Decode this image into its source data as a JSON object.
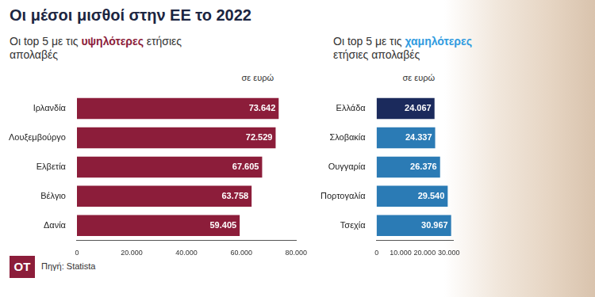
{
  "title": "Οι μέσοι μισθοί στην ΕΕ το 2022",
  "source": "Πηγή: Statista",
  "logo": "OT",
  "chart_data": [
    {
      "type": "bar",
      "orientation": "horizontal",
      "title": "Οι top 5 με τις υψηλότερες ετήσιες απολαβές",
      "title_emphasis": "υψηλότερες",
      "xlabel": "σε ευρώ",
      "categories": [
        "Ιρλανδία",
        "Λουξεμβούργο",
        "Ελβετία",
        "Βέλγιο",
        "Δανία"
      ],
      "values": [
        73642,
        72529,
        67605,
        63758,
        59405
      ],
      "value_labels": [
        "73.642",
        "72.529",
        "67.605",
        "63.758",
        "59.405"
      ],
      "color": "#8c1d3a",
      "xlim": [
        0,
        80000
      ],
      "xticks": [
        0,
        {
          "value": 20000,
          "label": "20.000"
        },
        {
          "value": 40000,
          "label": "40.000"
        },
        {
          "value": 60000,
          "label": "60.000"
        },
        {
          "value": 80000,
          "label": "80.000"
        }
      ],
      "grid": false,
      "data_labels": true
    },
    {
      "type": "bar",
      "orientation": "horizontal",
      "title": "Οι top 5 με τις χαμηλότερες ετήσιες απολαβές",
      "title_emphasis": "χαμηλότερες",
      "xlabel": "σε ευρώ",
      "categories": [
        "Ελλάδα",
        "Σλοβακία",
        "Ουγγαρία",
        "Πορτογαλία",
        "Τσεχία"
      ],
      "values": [
        24067,
        24337,
        26376,
        29540,
        30967
      ],
      "value_labels": [
        "24.067",
        "24.337",
        "26.376",
        "29.540",
        "30.967"
      ],
      "colors": [
        "#1b2a5c",
        "#2b7bb5",
        "#2b7bb5",
        "#2b7bb5",
        "#2b7bb5"
      ],
      "xlim": [
        0,
        32000
      ],
      "xticks": [
        0,
        {
          "value": 10000,
          "label": "10.000"
        },
        {
          "value": 20000,
          "label": "20.000"
        },
        {
          "value": 30000,
          "label": "30.000"
        }
      ],
      "grid": false,
      "data_labels": true
    }
  ]
}
